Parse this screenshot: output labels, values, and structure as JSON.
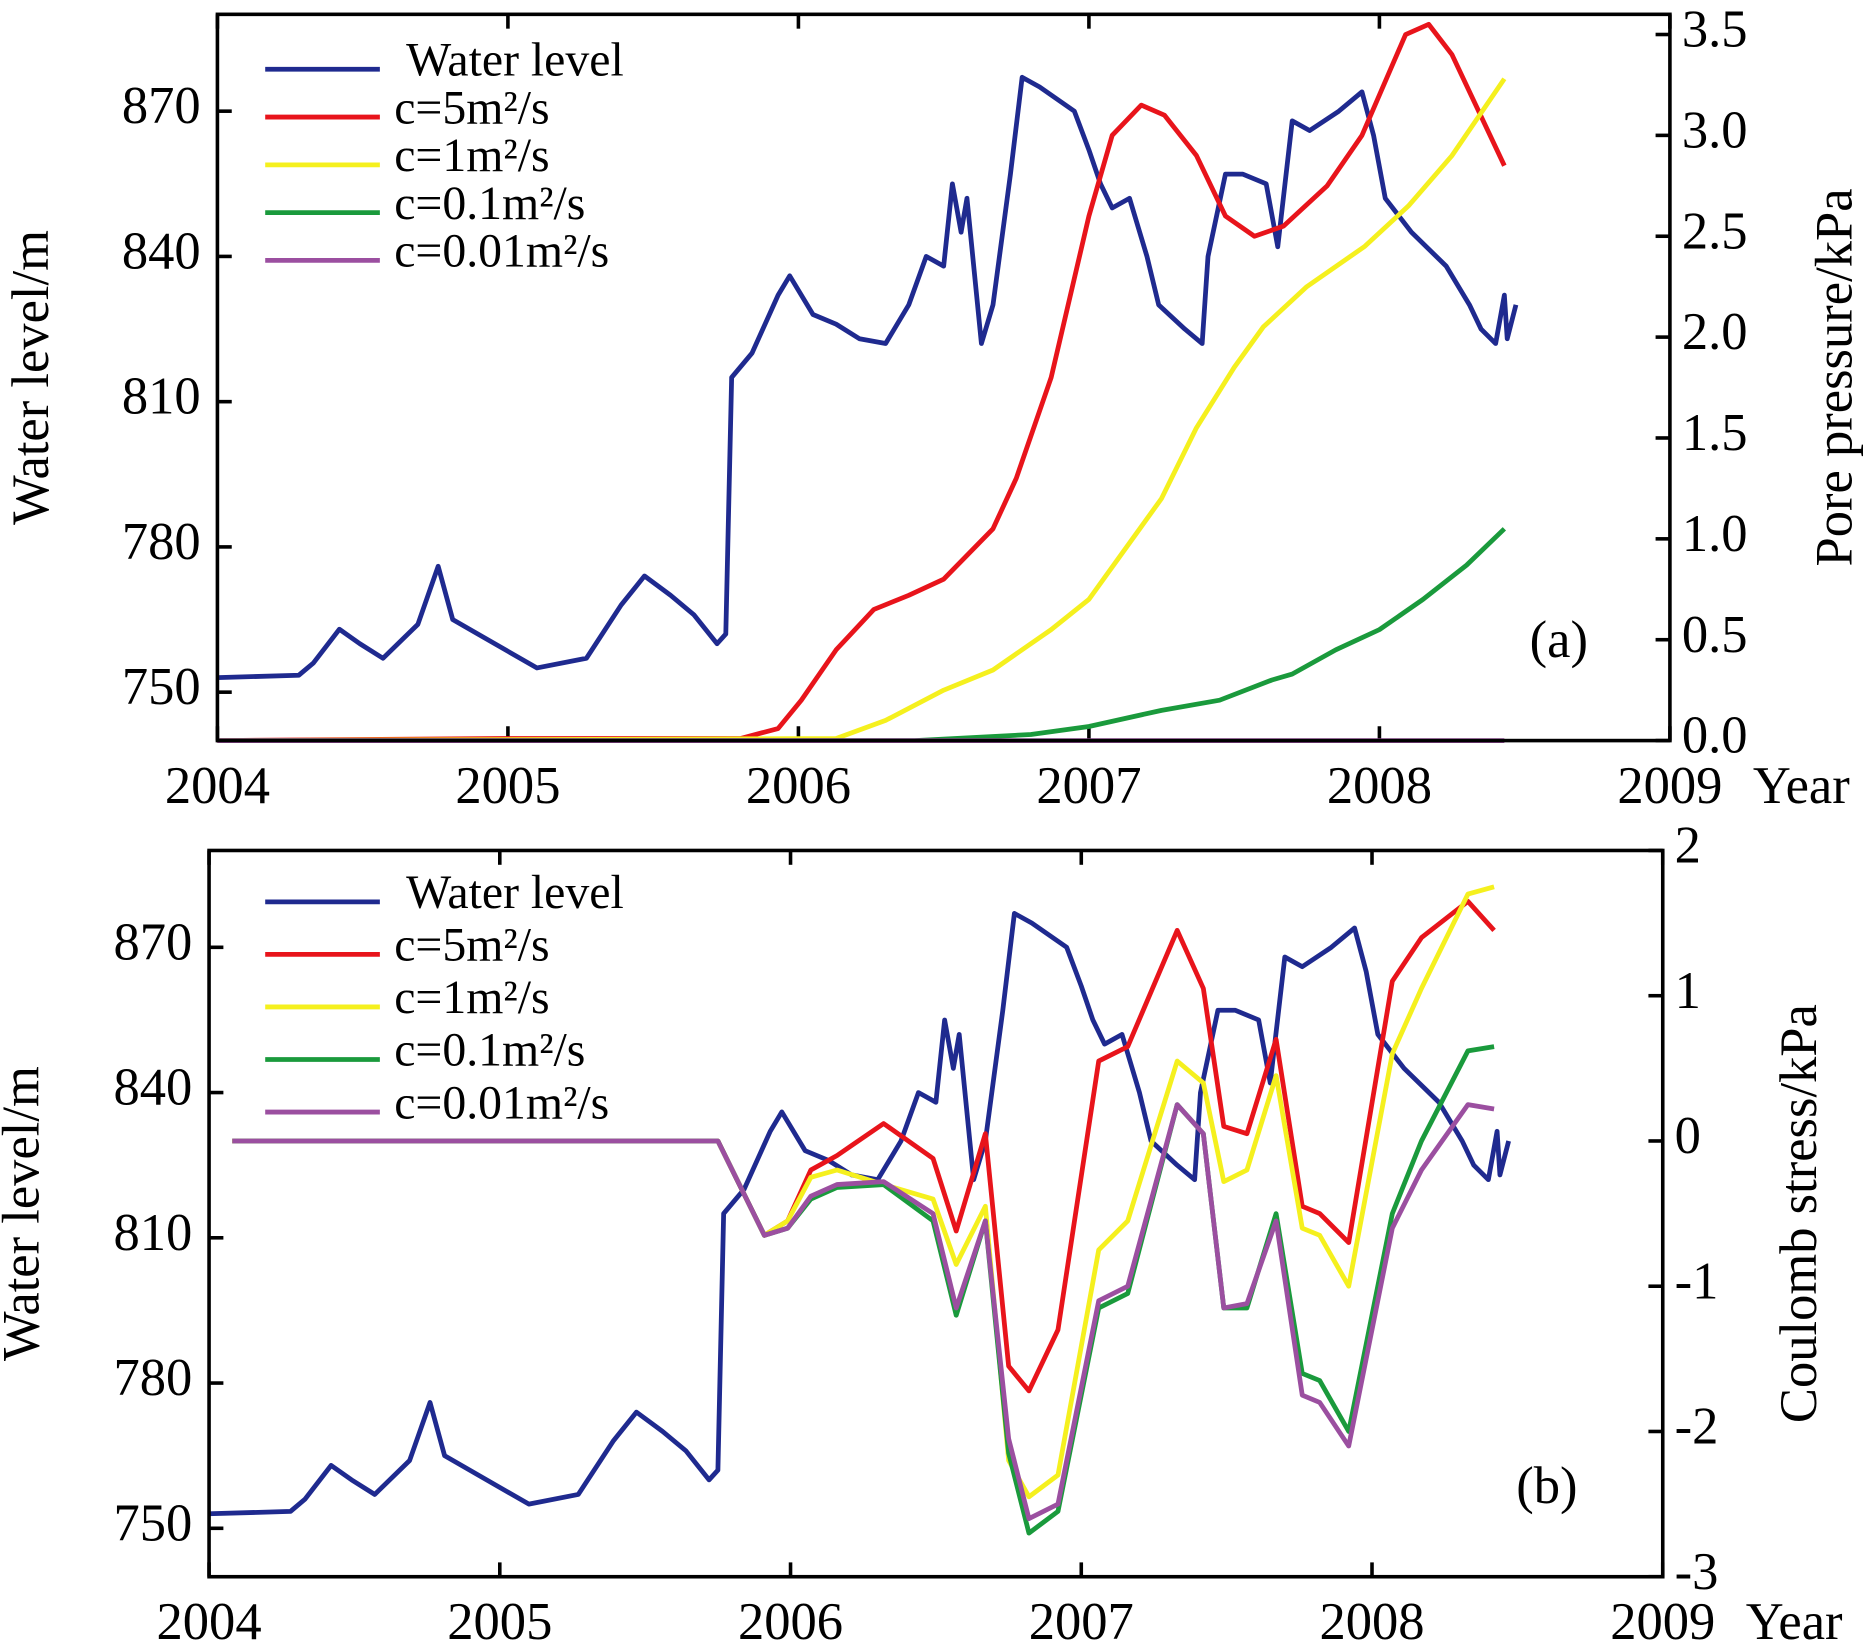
{
  "chart_data": [
    {
      "type": "line",
      "annotation": "(a)",
      "xlabel": "Year",
      "ylabel": "Water level/m",
      "y2label": "Pore pressure/kPa",
      "xlim": [
        2004,
        2009
      ],
      "xticks": [
        2004,
        2005,
        2006,
        2007,
        2008,
        2009
      ],
      "ylim": [
        740,
        890
      ],
      "yticks": [
        750,
        780,
        810,
        840,
        870
      ],
      "y2lim": [
        0,
        3.6
      ],
      "y2ticks": [
        {
          "value": 0,
          "label": "0.0"
        },
        0.5,
        {
          "value": 1,
          "label": "1.0"
        },
        1.5,
        {
          "value": 2,
          "label": "2.0"
        },
        2.5,
        {
          "value": 3,
          "label": "3.0"
        },
        3.5
      ],
      "series": [
        {
          "name": "Water level",
          "color": "#1f2a8f",
          "axis": "y",
          "x": [
            2004.0,
            2004.28,
            2004.33,
            2004.42,
            2004.49,
            2004.57,
            2004.69,
            2004.76,
            2004.81,
            2005.1,
            2005.27,
            2005.39,
            2005.47,
            2005.56,
            2005.64,
            2005.72,
            2005.75,
            2005.77,
            2005.84,
            2005.93,
            2005.97,
            2006.05,
            2006.13,
            2006.21,
            2006.3,
            2006.38,
            2006.44,
            2006.5,
            2006.53,
            2006.56,
            2006.58,
            2006.63,
            2006.67,
            2006.73,
            2006.77,
            2006.83,
            2006.95,
            2007.0,
            2007.04,
            2007.08,
            2007.14,
            2007.2,
            2007.24,
            2007.33,
            2007.39,
            2007.41,
            2007.47,
            2007.53,
            2007.61,
            2007.65,
            2007.7,
            2007.76,
            2007.86,
            2007.94,
            2007.98,
            2008.02,
            2008.11,
            2008.23,
            2008.31,
            2008.35,
            2008.4,
            2008.43,
            2008.44,
            2008.47
          ],
          "values": [
            753,
            753.5,
            756,
            763,
            760,
            757,
            764,
            776,
            765,
            755,
            757,
            768,
            774,
            770,
            766,
            760,
            762,
            815,
            820,
            832,
            836,
            828,
            826,
            823,
            822,
            830,
            840,
            838,
            855,
            845,
            852,
            822,
            830,
            857,
            877,
            875,
            870,
            862,
            855,
            850,
            852,
            840,
            830,
            825,
            822,
            840,
            857,
            857,
            855,
            842,
            868,
            866,
            870,
            874,
            865,
            852,
            845,
            838,
            830,
            825,
            822,
            832,
            823,
            830
          ]
        },
        {
          "name": "c=5m²/s",
          "color": "#e8141b",
          "axis": "y2",
          "x": [
            2004.0,
            2004.98,
            2005.8,
            2005.93,
            2006.01,
            2006.13,
            2006.26,
            2006.38,
            2006.5,
            2006.67,
            2006.75,
            2006.87,
            2007.0,
            2007.08,
            2007.18,
            2007.26,
            2007.37,
            2007.47,
            2007.57,
            2007.67,
            2007.82,
            2007.94,
            2008.09,
            2008.17,
            2008.25,
            2008.43
          ],
          "values": [
            0,
            0.01,
            0.01,
            0.06,
            0.2,
            0.45,
            0.65,
            0.72,
            0.8,
            1.05,
            1.3,
            1.8,
            2.6,
            3.0,
            3.15,
            3.1,
            2.9,
            2.6,
            2.5,
            2.55,
            2.75,
            3.0,
            3.5,
            3.55,
            3.4,
            2.85
          ]
        },
        {
          "name": "c=1m²/s",
          "color": "#f5f01e",
          "axis": "y2",
          "x": [
            2004.0,
            2006.13,
            2006.3,
            2006.5,
            2006.67,
            2006.87,
            2007.0,
            2007.15,
            2007.25,
            2007.37,
            2007.5,
            2007.6,
            2007.75,
            2007.95,
            2008.1,
            2008.25,
            2008.43
          ],
          "values": [
            0,
            0.01,
            0.1,
            0.25,
            0.35,
            0.55,
            0.7,
            1.0,
            1.2,
            1.55,
            1.85,
            2.05,
            2.25,
            2.45,
            2.65,
            2.9,
            3.28
          ]
        },
        {
          "name": "c=0.1m²/s",
          "color": "#1a9a3c",
          "axis": "y2",
          "x": [
            2004.0,
            2006.4,
            2006.8,
            2007.0,
            2007.25,
            2007.45,
            2007.63,
            2007.7,
            2007.85,
            2008.0,
            2008.15,
            2008.3,
            2008.43
          ],
          "values": [
            0,
            0,
            0.03,
            0.07,
            0.15,
            0.2,
            0.3,
            0.33,
            0.45,
            0.55,
            0.7,
            0.87,
            1.05
          ]
        },
        {
          "name": "c=0.01m²/s",
          "color": "#9b4fa0",
          "axis": "y2",
          "x": [
            2004.0,
            2008.43
          ],
          "values": [
            0,
            0
          ]
        }
      ]
    },
    {
      "type": "line",
      "annotation": "(b)",
      "xlabel": "Year",
      "ylabel": "Water level/m",
      "y2label": "Coulomb stress/kPa",
      "xlim": [
        2004,
        2009
      ],
      "xticks": [
        2004,
        2005,
        2006,
        2007,
        2008,
        2009
      ],
      "ylim": [
        740,
        890
      ],
      "yticks": [
        750,
        780,
        810,
        840,
        870
      ],
      "y2lim": [
        -3,
        2
      ],
      "y2ticks": [
        -3,
        -2,
        -1,
        0,
        1,
        2
      ],
      "series": [
        {
          "name": "Water level",
          "color": "#1f2a8f",
          "axis": "y",
          "x": [
            2004.0,
            2004.28,
            2004.33,
            2004.42,
            2004.49,
            2004.57,
            2004.69,
            2004.76,
            2004.81,
            2005.1,
            2005.27,
            2005.39,
            2005.47,
            2005.56,
            2005.64,
            2005.72,
            2005.75,
            2005.77,
            2005.84,
            2005.93,
            2005.97,
            2006.05,
            2006.13,
            2006.21,
            2006.3,
            2006.38,
            2006.44,
            2006.5,
            2006.53,
            2006.56,
            2006.58,
            2006.63,
            2006.67,
            2006.73,
            2006.77,
            2006.83,
            2006.95,
            2007.0,
            2007.04,
            2007.08,
            2007.14,
            2007.2,
            2007.24,
            2007.33,
            2007.39,
            2007.41,
            2007.47,
            2007.53,
            2007.61,
            2007.65,
            2007.7,
            2007.76,
            2007.86,
            2007.94,
            2007.98,
            2008.02,
            2008.11,
            2008.23,
            2008.31,
            2008.35,
            2008.4,
            2008.43,
            2008.44,
            2008.47
          ],
          "values": [
            753,
            753.5,
            756,
            763,
            760,
            757,
            764,
            776,
            765,
            755,
            757,
            768,
            774,
            770,
            766,
            760,
            762,
            815,
            820,
            832,
            836,
            828,
            826,
            823,
            822,
            830,
            840,
            838,
            855,
            845,
            852,
            822,
            830,
            857,
            877,
            875,
            870,
            862,
            855,
            850,
            852,
            840,
            830,
            825,
            822,
            840,
            857,
            857,
            855,
            842,
            868,
            866,
            870,
            874,
            865,
            852,
            845,
            838,
            830,
            825,
            822,
            832,
            823,
            830
          ]
        },
        {
          "name": "c=5m²/s",
          "color": "#e8141b",
          "axis": "y2",
          "x": [
            2004.08,
            2005.75,
            2005.91,
            2005.99,
            2006.07,
            2006.16,
            2006.32,
            2006.49,
            2006.57,
            2006.67,
            2006.75,
            2006.82,
            2006.92,
            2007.06,
            2007.16,
            2007.33,
            2007.42,
            2007.49,
            2007.57,
            2007.67,
            2007.76,
            2007.82,
            2007.92,
            2008.07,
            2008.17,
            2008.33,
            2008.42
          ],
          "values": [
            0,
            0,
            -0.65,
            -0.55,
            -0.2,
            -0.1,
            0.12,
            -0.12,
            -0.62,
            0.05,
            -1.55,
            -1.72,
            -1.3,
            0.55,
            0.65,
            1.45,
            1.05,
            0.1,
            0.05,
            0.7,
            -0.45,
            -0.5,
            -0.7,
            1.1,
            1.4,
            1.65,
            1.45
          ]
        },
        {
          "name": "c=1m²/s",
          "color": "#f5f01e",
          "axis": "y2",
          "x": [
            2004.08,
            2005.75,
            2005.91,
            2005.99,
            2006.07,
            2006.16,
            2006.32,
            2006.49,
            2006.57,
            2006.67,
            2006.75,
            2006.82,
            2006.92,
            2007.06,
            2007.16,
            2007.33,
            2007.42,
            2007.49,
            2007.57,
            2007.67,
            2007.76,
            2007.82,
            2007.92,
            2008.07,
            2008.17,
            2008.33,
            2008.42
          ],
          "values": [
            0,
            0,
            -0.65,
            -0.55,
            -0.25,
            -0.2,
            -0.3,
            -0.4,
            -0.85,
            -0.45,
            -2.2,
            -2.45,
            -2.3,
            -0.75,
            -0.55,
            0.55,
            0.4,
            -0.28,
            -0.2,
            0.45,
            -0.6,
            -0.65,
            -1.0,
            0.6,
            1.05,
            1.7,
            1.75
          ]
        },
        {
          "name": "c=0.1m²/s",
          "color": "#1a9a3c",
          "axis": "y2",
          "x": [
            2004.08,
            2005.75,
            2005.91,
            2005.99,
            2006.07,
            2006.16,
            2006.32,
            2006.49,
            2006.57,
            2006.67,
            2006.75,
            2006.82,
            2006.92,
            2007.06,
            2007.16,
            2007.33,
            2007.42,
            2007.49,
            2007.57,
            2007.67,
            2007.76,
            2007.82,
            2007.92,
            2008.07,
            2008.17,
            2008.33,
            2008.42
          ],
          "values": [
            0,
            0,
            -0.65,
            -0.6,
            -0.4,
            -0.32,
            -0.3,
            -0.55,
            -1.2,
            -0.55,
            -2.15,
            -2.7,
            -2.55,
            -1.15,
            -1.05,
            0.25,
            0.05,
            -1.15,
            -1.15,
            -0.5,
            -1.6,
            -1.65,
            -2.0,
            -0.5,
            0.0,
            0.62,
            0.65
          ]
        },
        {
          "name": "c=0.01m²/s",
          "color": "#9b4fa0",
          "axis": "y2",
          "x": [
            2004.08,
            2005.75,
            2005.91,
            2005.99,
            2006.07,
            2006.16,
            2006.32,
            2006.49,
            2006.57,
            2006.67,
            2006.75,
            2006.82,
            2006.92,
            2007.06,
            2007.16,
            2007.33,
            2007.42,
            2007.49,
            2007.57,
            2007.67,
            2007.76,
            2007.82,
            2007.92,
            2008.07,
            2008.17,
            2008.33,
            2008.42
          ],
          "values": [
            0,
            0,
            -0.65,
            -0.6,
            -0.38,
            -0.3,
            -0.28,
            -0.5,
            -1.15,
            -0.55,
            -2.05,
            -2.6,
            -2.5,
            -1.1,
            -1.0,
            0.25,
            0.05,
            -1.15,
            -1.12,
            -0.55,
            -1.75,
            -1.8,
            -2.1,
            -0.6,
            -0.2,
            0.25,
            0.22
          ]
        }
      ]
    }
  ]
}
